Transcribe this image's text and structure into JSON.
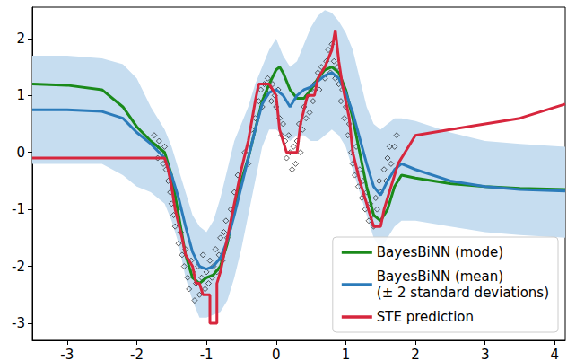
{
  "chart_data": {
    "type": "line",
    "xlim": [
      -3.5,
      4.15
    ],
    "ylim": [
      -3.3,
      2.55
    ],
    "xticks": [
      -3,
      -2,
      -1,
      0,
      1,
      2,
      3,
      4
    ],
    "yticks": [
      -3,
      -2,
      -1,
      0,
      1,
      2
    ],
    "grid": false,
    "legend": "lower right",
    "series": [
      {
        "type": "scatter",
        "color": "#000000",
        "marker": "diamond",
        "x": [
          -1.75,
          -1.72,
          -1.7,
          -1.68,
          -1.65,
          -1.62,
          -1.6,
          -1.58,
          -1.55,
          -1.52,
          -1.5,
          -1.47,
          -1.45,
          -1.42,
          -1.4,
          -1.37,
          -1.35,
          -1.32,
          -1.3,
          -1.27,
          -1.25,
          -1.22,
          -1.2,
          -1.17,
          -1.15,
          -1.12,
          -1.1,
          -1.07,
          -1.05,
          -1.02,
          -1.0,
          -0.97,
          -0.95,
          -0.92,
          -0.9,
          -0.87,
          -0.85,
          -0.82,
          -0.8,
          -0.77,
          -0.75,
          -0.72,
          -0.7,
          -0.65,
          -0.6,
          -0.55,
          -0.5,
          -0.45,
          -0.4,
          -0.35,
          -0.3,
          -0.25,
          -0.22,
          -0.2,
          -0.17,
          -0.15,
          -0.12,
          -0.1,
          -0.07,
          -0.05,
          -0.02,
          0.0,
          0.03,
          0.05,
          0.08,
          0.1,
          0.13,
          0.15,
          0.18,
          0.2,
          0.23,
          0.25,
          0.28,
          0.3,
          0.33,
          0.35,
          0.38,
          0.4,
          0.43,
          0.45,
          0.48,
          0.5,
          0.53,
          0.55,
          0.6,
          0.62,
          0.65,
          0.7,
          0.72,
          0.75,
          0.78,
          0.8,
          0.83,
          0.85,
          0.88,
          0.9,
          0.93,
          0.95,
          0.98,
          1.0,
          1.03,
          1.05,
          1.08,
          1.1,
          1.13,
          1.15,
          1.18,
          1.2,
          1.23,
          1.25,
          1.28,
          1.3,
          1.33,
          1.35,
          1.38,
          1.4,
          1.43,
          1.45,
          1.48,
          1.5,
          1.55,
          1.58,
          1.6,
          1.63,
          1.65,
          1.7,
          1.73
        ],
        "values": [
          0.3,
          0.1,
          -0.1,
          0.2,
          0.0,
          -0.2,
          0.1,
          -0.3,
          -0.5,
          -0.7,
          -0.9,
          -1.1,
          -1.3,
          -1.0,
          -1.6,
          -1.4,
          -1.8,
          -2.0,
          -1.7,
          -2.2,
          -2.4,
          -1.9,
          -2.1,
          -2.6,
          -2.3,
          -2.0,
          -2.5,
          -2.2,
          -1.8,
          -2.4,
          -2.1,
          -2.3,
          -1.9,
          -2.2,
          -2.0,
          -1.7,
          -2.1,
          -1.8,
          -1.5,
          -1.9,
          -1.4,
          -1.2,
          -1.5,
          -1.0,
          -0.7,
          -0.4,
          -0.5,
          0.0,
          -0.2,
          0.4,
          0.6,
          0.9,
          1.1,
          0.8,
          1.2,
          1.0,
          1.3,
          1.1,
          0.9,
          1.2,
          1.0,
          0.8,
          1.1,
          0.6,
          0.3,
          0.5,
          0.2,
          -0.1,
          0.3,
          0.0,
          -0.3,
          0.1,
          -0.2,
          0.2,
          0.5,
          0.0,
          0.4,
          0.8,
          0.6,
          1.0,
          0.7,
          1.1,
          0.9,
          1.2,
          1.4,
          1.1,
          1.5,
          1.3,
          1.6,
          1.8,
          1.4,
          1.9,
          1.6,
          1.3,
          1.5,
          1.2,
          0.9,
          1.1,
          0.6,
          0.8,
          0.3,
          0.5,
          0.0,
          -0.2,
          -0.4,
          0.1,
          -0.6,
          -0.3,
          -0.8,
          -0.5,
          -1.0,
          -0.7,
          -1.2,
          -0.9,
          -1.1,
          -1.3,
          -0.8,
          -1.0,
          -0.5,
          -0.7,
          -0.3,
          -0.5,
          -0.1,
          0.1,
          -0.2,
          0.1,
          0.3
        ]
      },
      {
        "name": "BayesBiNN (mode)",
        "color": "#1a8a1a",
        "x": [
          -3.5,
          -3.0,
          -2.5,
          -2.2,
          -2.0,
          -1.8,
          -1.6,
          -1.5,
          -1.4,
          -1.3,
          -1.2,
          -1.1,
          -1.0,
          -0.9,
          -0.8,
          -0.7,
          -0.6,
          -0.5,
          -0.4,
          -0.3,
          -0.2,
          -0.1,
          0,
          0.05,
          0.1,
          0.2,
          0.3,
          0.4,
          0.5,
          0.6,
          0.7,
          0.8,
          0.9,
          1.0,
          1.1,
          1.2,
          1.3,
          1.4,
          1.5,
          1.6,
          1.7,
          1.8,
          2.0,
          2.5,
          3.0,
          3.5,
          4.15
        ],
        "values": [
          1.2,
          1.18,
          1.1,
          0.8,
          0.45,
          0.2,
          0.0,
          -0.4,
          -1.1,
          -1.8,
          -2.2,
          -2.3,
          -2.2,
          -2.15,
          -2.0,
          -1.6,
          -1.0,
          -0.5,
          -0.1,
          0.4,
          0.9,
          1.2,
          1.45,
          1.5,
          1.4,
          1.1,
          0.95,
          0.95,
          1.1,
          1.3,
          1.45,
          1.5,
          1.4,
          1.1,
          0.6,
          0.0,
          -0.6,
          -1.1,
          -1.2,
          -1.0,
          -0.6,
          -0.4,
          -0.45,
          -0.55,
          -0.6,
          -0.63,
          -0.65
        ]
      },
      {
        "name": "BayesBiNN (mean)\n(± 2 standard deviations)",
        "color": "#2b7bba",
        "x": [
          -3.5,
          -3.0,
          -2.5,
          -2.2,
          -2.0,
          -1.8,
          -1.6,
          -1.5,
          -1.4,
          -1.3,
          -1.2,
          -1.1,
          -1.0,
          -0.9,
          -0.8,
          -0.7,
          -0.6,
          -0.5,
          -0.4,
          -0.3,
          -0.2,
          -0.1,
          0,
          0.1,
          0.2,
          0.3,
          0.4,
          0.5,
          0.6,
          0.7,
          0.8,
          0.9,
          1.0,
          1.1,
          1.2,
          1.3,
          1.4,
          1.5,
          1.6,
          1.7,
          1.8,
          2.0,
          2.5,
          3.0,
          3.5,
          4.15
        ],
        "values": [
          0.75,
          0.75,
          0.72,
          0.6,
          0.35,
          0.15,
          -0.1,
          -0.4,
          -0.8,
          -1.3,
          -1.75,
          -2.0,
          -2.05,
          -2.0,
          -1.85,
          -1.55,
          -1.1,
          -0.6,
          -0.1,
          0.4,
          0.85,
          1.05,
          1.1,
          1.0,
          0.8,
          1.0,
          1.1,
          1.15,
          1.25,
          1.35,
          1.4,
          1.3,
          1.05,
          0.7,
          0.25,
          -0.2,
          -0.6,
          -0.75,
          -0.5,
          -0.3,
          -0.2,
          -0.3,
          -0.5,
          -0.6,
          -0.65,
          -0.68
        ],
        "band": {
          "color": "#c6ddf0",
          "lower": [
            -0.2,
            -0.2,
            -0.2,
            -0.4,
            -0.6,
            -0.7,
            -0.9,
            -1.2,
            -1.6,
            -2.2,
            -2.6,
            -2.9,
            -2.9,
            -2.85,
            -2.8,
            -2.6,
            -2.2,
            -1.7,
            -1.1,
            -0.5,
            0.1,
            0.4,
            0.4,
            0.3,
            0.2,
            0.3,
            0.3,
            0.2,
            0.2,
            0.3,
            0.4,
            0.3,
            0.1,
            -0.3,
            -0.7,
            -1.1,
            -1.5,
            -1.7,
            -1.5,
            -1.3,
            -1.2,
            -1.2,
            -1.3,
            -1.4,
            -1.45,
            -1.5
          ],
          "upper": [
            1.7,
            1.7,
            1.65,
            1.55,
            1.3,
            0.8,
            0.4,
            0.1,
            -0.3,
            -0.7,
            -1.1,
            -1.3,
            -1.4,
            -1.2,
            -0.8,
            -0.3,
            0.2,
            0.5,
            0.8,
            1.2,
            1.5,
            1.8,
            2.0,
            1.7,
            1.5,
            1.6,
            1.9,
            2.2,
            2.4,
            2.5,
            2.45,
            2.3,
            2.1,
            1.8,
            1.3,
            0.8,
            0.5,
            0.4,
            0.5,
            0.6,
            0.6,
            0.55,
            0.35,
            0.2,
            0.15,
            0.1
          ]
        }
      },
      {
        "name": "STE prediction",
        "color": "#d7263d",
        "x": [
          -3.5,
          -1.6,
          -1.55,
          -1.5,
          -1.45,
          -1.35,
          -1.3,
          -1.2,
          -1.15,
          -1.1,
          -1.05,
          -0.95,
          -0.95,
          -0.85,
          -0.85,
          -0.8,
          -0.7,
          -0.6,
          -0.5,
          -0.4,
          -0.3,
          -0.25,
          -0.1,
          0,
          0.05,
          0.15,
          0.3,
          0.35,
          0.45,
          0.55,
          0.6,
          0.7,
          0.8,
          0.85,
          0.9,
          0.95,
          1.05,
          1.1,
          1.2,
          1.3,
          1.4,
          1.5,
          1.55,
          1.65,
          1.75,
          1.85,
          2.0,
          2.5,
          3.0,
          3.5,
          4.15
        ],
        "values": [
          -0.1,
          -0.1,
          -0.3,
          -0.6,
          -1.0,
          -1.5,
          -1.8,
          -2.0,
          -2.3,
          -2.3,
          -2.5,
          -2.5,
          -3.0,
          -3.0,
          -2.3,
          -2.1,
          -1.5,
          -0.9,
          -0.3,
          0.2,
          0.9,
          1.2,
          1.2,
          1.0,
          0.4,
          0.0,
          0.0,
          0.5,
          1.0,
          1.0,
          1.3,
          1.5,
          1.8,
          2.15,
          1.6,
          1.2,
          0.6,
          0.0,
          -0.5,
          -0.9,
          -1.3,
          -1.3,
          -1.0,
          -0.6,
          -0.2,
          0.0,
          0.3,
          0.4,
          0.5,
          0.6,
          0.85
        ]
      }
    ]
  }
}
